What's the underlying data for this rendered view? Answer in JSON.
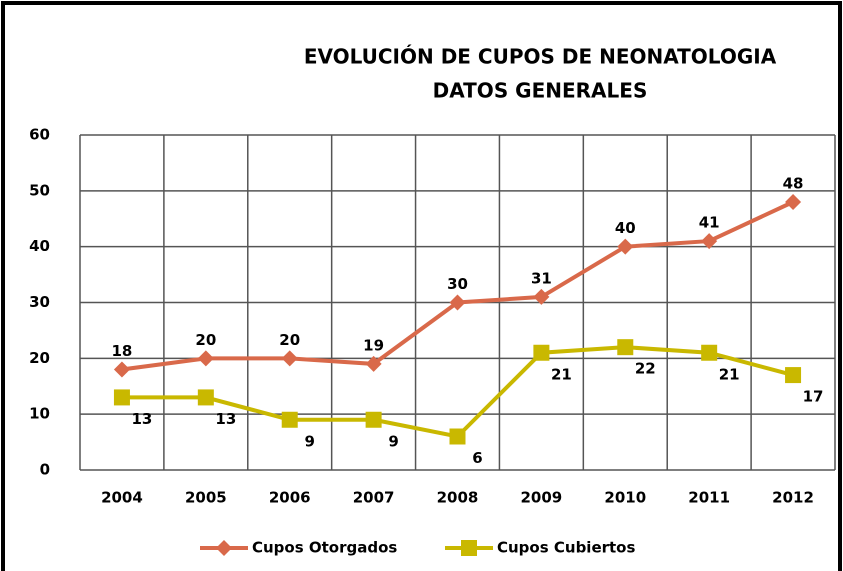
{
  "chart_data": {
    "type": "line",
    "title": "EVOLUCIÓN DE CUPOS DE NEONATOLOGIA",
    "subtitle": "DATOS GENERALES",
    "categories": [
      "2004",
      "2005",
      "2006",
      "2007",
      "2008",
      "2009",
      "2010",
      "2011",
      "2012"
    ],
    "series": [
      {
        "name": "Cupos Otorgados",
        "color": "#d9694a",
        "marker": "diamond",
        "values": [
          18,
          20,
          20,
          19,
          30,
          31,
          40,
          41,
          48
        ]
      },
      {
        "name": "Cupos Cubiertos",
        "color": "#c9b800",
        "marker": "square",
        "values": [
          13,
          13,
          9,
          9,
          6,
          21,
          22,
          21,
          17
        ]
      }
    ],
    "ylim": [
      0,
      60
    ],
    "yticks": [
      0,
      10,
      20,
      30,
      40,
      50,
      60
    ],
    "grid": true,
    "legend": "bottom"
  }
}
